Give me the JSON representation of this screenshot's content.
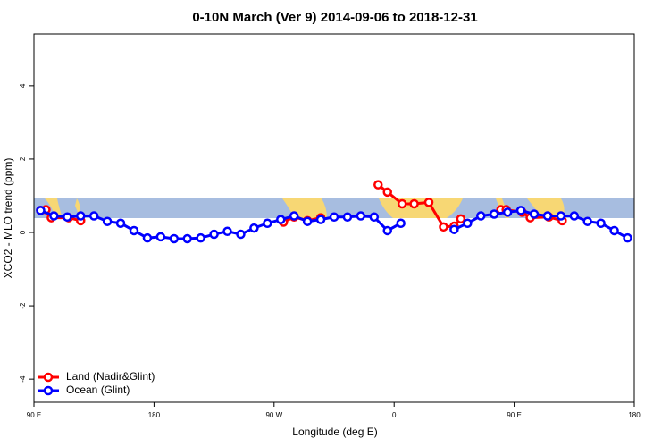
{
  "chart_data": {
    "type": "line",
    "title": "0-10N March (Ver 9)   2014-09-06 to 2018-12-31",
    "x_label": "Longitude (deg E)",
    "y_label": "XCO2 - MLO trend (ppm)",
    "xlim": [
      90,
      540
    ],
    "xticks": [
      {
        "value": 90,
        "label": "90 E"
      },
      {
        "value": 180,
        "label": "180"
      },
      {
        "value": 270,
        "label": "90 W"
      },
      {
        "value": 360,
        "label": "0"
      },
      {
        "value": 450,
        "label": "90 E"
      },
      {
        "value": 540,
        "label": "180"
      }
    ],
    "ylim": [
      -4.63,
      5.41
    ],
    "yticks": [
      -4,
      -2,
      0,
      2,
      4
    ],
    "legend": "bottom-left",
    "series": [
      {
        "name": "Land (Nadir&Glint)",
        "color": "#ff0000",
        "x": [
          95,
          99,
          103,
          116,
          125,
          200,
          277,
          285,
          295,
          305,
          330,
          348,
          355,
          366,
          375,
          386,
          397,
          405,
          410,
          425,
          440,
          444,
          456,
          462,
          476,
          486
        ],
        "values": [
          0.6,
          0.62,
          0.4,
          0.4,
          0.32,
          null,
          0.28,
          0.42,
          0.32,
          0.4,
          null,
          1.3,
          1.1,
          0.78,
          0.78,
          0.82,
          0.15,
          0.17,
          0.37,
          null,
          0.62,
          0.62,
          0.55,
          0.4,
          0.42,
          0.32
        ]
      },
      {
        "name": "Ocean (Glint)",
        "color": "#0000ff",
        "x": [
          95,
          105,
          115,
          125,
          135,
          145,
          155,
          165,
          175,
          185,
          195,
          205,
          215,
          225,
          235,
          245,
          255,
          265,
          275,
          285,
          295,
          305,
          315,
          325,
          335,
          345,
          355,
          365,
          385,
          405,
          415,
          425,
          435,
          445,
          455,
          465,
          475,
          485,
          495,
          505,
          515,
          525,
          535
        ],
        "values": [
          0.6,
          0.45,
          0.42,
          0.45,
          0.45,
          0.3,
          0.25,
          0.05,
          -0.15,
          -0.12,
          -0.17,
          -0.17,
          -0.15,
          -0.05,
          0.03,
          -0.05,
          0.12,
          0.25,
          0.35,
          0.45,
          0.3,
          0.35,
          0.42,
          0.42,
          0.45,
          0.42,
          0.05,
          0.25,
          null,
          0.08,
          0.25,
          0.45,
          0.5,
          0.55,
          0.6,
          0.5,
          0.45,
          0.45,
          0.45,
          0.3,
          0.25,
          0.05,
          -0.15
        ]
      }
    ]
  }
}
